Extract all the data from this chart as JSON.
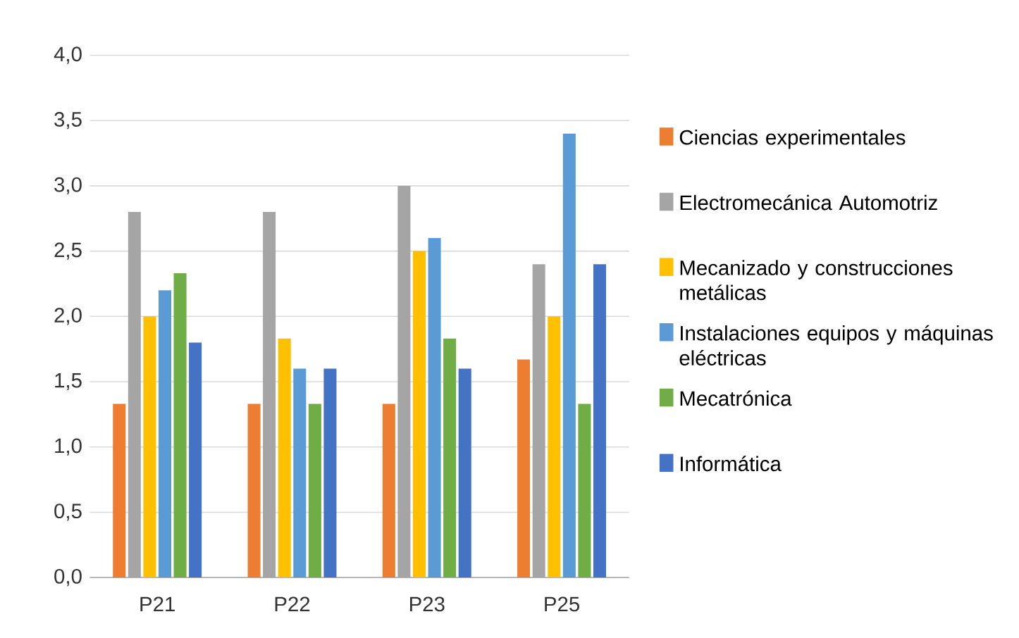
{
  "chart_data": {
    "type": "bar",
    "categories": [
      "P21",
      "P22",
      "P23",
      "P25"
    ],
    "series": [
      {
        "name": "Ciencias experimentales",
        "color": "#ed7d31",
        "values": [
          1.33,
          1.33,
          1.33,
          1.67
        ]
      },
      {
        "name": "Electromecánica Automotriz",
        "color": "#a5a5a5",
        "values": [
          2.8,
          2.8,
          3.0,
          2.4
        ]
      },
      {
        "name": "Mecanizado y construcciones metálicas",
        "color": "#ffc000",
        "values": [
          2.0,
          1.83,
          2.5,
          2.0
        ]
      },
      {
        "name": "Instalaciones  equipos y máquinas eléctricas",
        "color": "#5b9bd5",
        "values": [
          2.2,
          1.6,
          2.6,
          3.4
        ]
      },
      {
        "name": "Mecatrónica",
        "color": "#70ad47",
        "values": [
          2.33,
          1.33,
          1.83,
          1.33
        ]
      },
      {
        "name": "Informática",
        "color": "#4472c4",
        "values": [
          1.8,
          1.6,
          1.6,
          2.4
        ]
      }
    ],
    "ylim": [
      0,
      4
    ],
    "yticks": [
      {
        "value": 0,
        "label": "0,0"
      },
      {
        "value": 0.5,
        "label": "0,5"
      },
      {
        "value": 1,
        "label": "1,0"
      },
      {
        "value": 1.5,
        "label": "1,5"
      },
      {
        "value": 2,
        "label": "2,0"
      },
      {
        "value": 2.5,
        "label": "2,5"
      },
      {
        "value": 3,
        "label": "3,0"
      },
      {
        "value": 3.5,
        "label": "3,5"
      },
      {
        "value": 4,
        "label": "4,0"
      }
    ],
    "grid": "y",
    "legend": "right"
  }
}
